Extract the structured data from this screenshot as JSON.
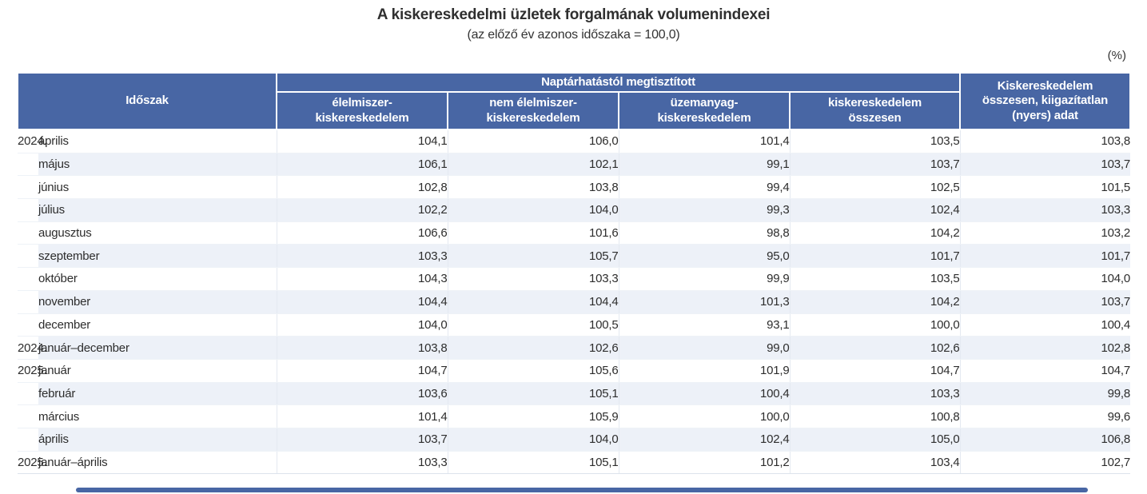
{
  "chart_data": {
    "type": "table",
    "title": "A kiskereskedelmi üzletek forgalmának volumenindexei",
    "subtitle": "(az előző év azonos időszaka = 100,0)",
    "unit": "(%)",
    "header": {
      "period": "Időszak",
      "group": "Naptárhatástól megtisztított",
      "columns": [
        "élelmiszer-\nkiskereskedelem",
        "nem élelmiszer-\nkiskereskedelem",
        "üzemanyag-\nkiskereskedelem",
        "kiskereskedelem\nösszesen"
      ],
      "total_raw": "Kiskereskedelem\nösszesen, kiigazítatlan\n(nyers) adat"
    },
    "rows": [
      {
        "year": "2024.",
        "period": "április",
        "values": [
          "104,1",
          "106,0",
          "101,4",
          "103,5",
          "103,8"
        ]
      },
      {
        "year": "",
        "period": "május",
        "values": [
          "106,1",
          "102,1",
          "99,1",
          "103,7",
          "103,7"
        ]
      },
      {
        "year": "",
        "period": "június",
        "values": [
          "102,8",
          "103,8",
          "99,4",
          "102,5",
          "101,5"
        ]
      },
      {
        "year": "",
        "period": "július",
        "values": [
          "102,2",
          "104,0",
          "99,3",
          "102,4",
          "103,3"
        ]
      },
      {
        "year": "",
        "period": "augusztus",
        "values": [
          "106,6",
          "101,6",
          "98,8",
          "104,2",
          "103,2"
        ]
      },
      {
        "year": "",
        "period": "szeptember",
        "values": [
          "103,3",
          "105,7",
          "95,0",
          "101,7",
          "101,7"
        ]
      },
      {
        "year": "",
        "period": "október",
        "values": [
          "104,3",
          "103,3",
          "99,9",
          "103,5",
          "104,0"
        ]
      },
      {
        "year": "",
        "period": "november",
        "values": [
          "104,4",
          "104,4",
          "101,3",
          "104,2",
          "103,7"
        ]
      },
      {
        "year": "",
        "period": "december",
        "values": [
          "104,0",
          "100,5",
          "93,1",
          "100,0",
          "100,4"
        ]
      },
      {
        "year": "2024.",
        "period": "január–december",
        "values": [
          "103,8",
          "102,6",
          "99,0",
          "102,6",
          "102,8"
        ]
      },
      {
        "year": "2025.",
        "period": "január",
        "values": [
          "104,7",
          "105,6",
          "101,9",
          "104,7",
          "104,7"
        ]
      },
      {
        "year": "",
        "period": "február",
        "values": [
          "103,6",
          "105,1",
          "100,4",
          "103,3",
          "99,8"
        ]
      },
      {
        "year": "",
        "period": "március",
        "values": [
          "101,4",
          "105,9",
          "100,0",
          "100,8",
          "99,6"
        ]
      },
      {
        "year": "",
        "period": "április",
        "values": [
          "103,7",
          "104,0",
          "102,4",
          "105,0",
          "106,8"
        ]
      },
      {
        "year": "2025.",
        "period": "január–április",
        "values": [
          "103,3",
          "105,1",
          "101,2",
          "103,4",
          "102,7"
        ]
      }
    ]
  },
  "colors": {
    "header_bg": "#4866a4",
    "stripe": "#edf1f8",
    "scrollbar_thumb": "#4866a4",
    "text": "#2d2d2d"
  }
}
